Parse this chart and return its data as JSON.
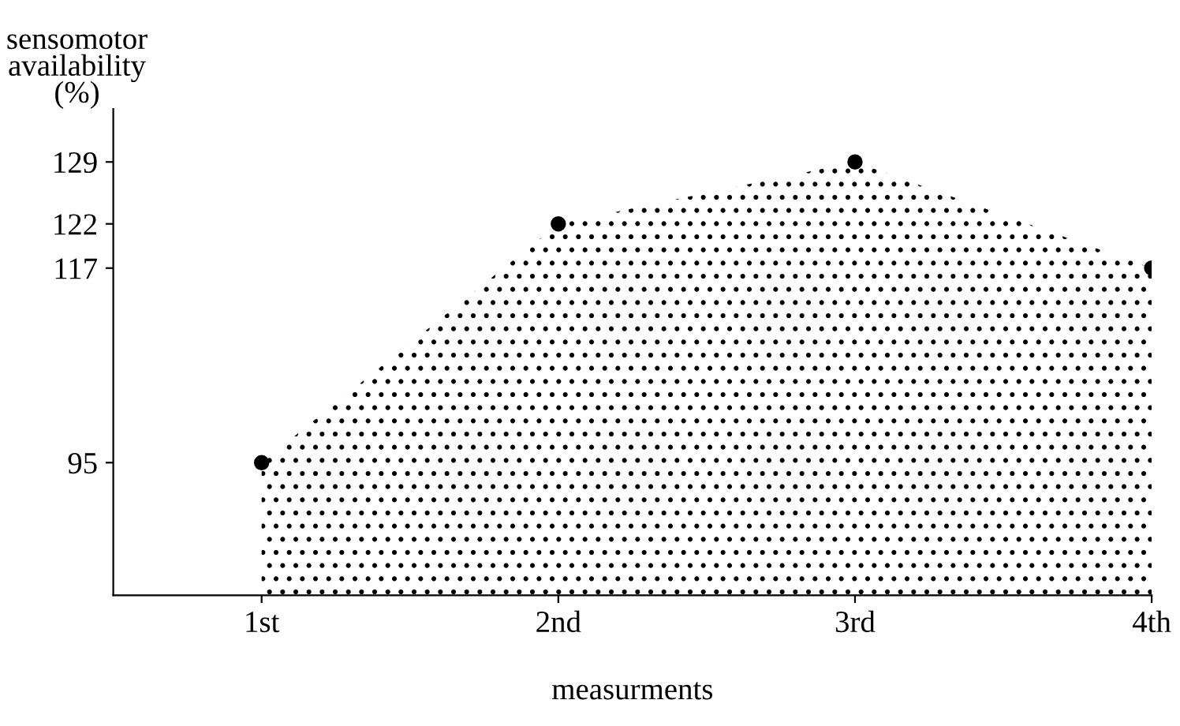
{
  "chart_data": {
    "type": "area",
    "xlabel": "measurments",
    "ylabel": "sensomotor\navailability\n(%)",
    "categories": [
      "1st",
      "2nd",
      "3rd",
      "4th"
    ],
    "series": [
      {
        "color": "#000000",
        "values": [
          95,
          122,
          129,
          117
        ]
      }
    ],
    "ylim": [
      80,
      135
    ],
    "yticks": [
      95,
      117,
      122,
      129
    ],
    "marker": "circle",
    "grid": false,
    "legend": false
  }
}
